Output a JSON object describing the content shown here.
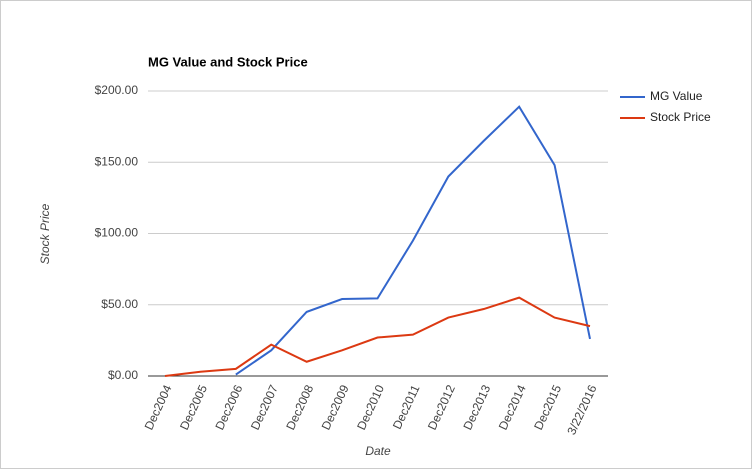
{
  "chart_data": {
    "type": "line",
    "title": "MG Value and Stock Price",
    "x_label": "Date",
    "y_label": "Stock Price",
    "categories": [
      "Dec2004",
      "Dec2005",
      "Dec2006",
      "Dec2007",
      "Dec2008",
      "Dec2009",
      "Dec2010",
      "Dec2011",
      "Dec2012",
      "Dec2013",
      "Dec2014",
      "Dec2015",
      "3/22/2016"
    ],
    "series": [
      {
        "name": "MG Value",
        "color": "#3366cc",
        "values": [
          null,
          null,
          1,
          18,
          45,
          54,
          54.5,
          95,
          140,
          165,
          189,
          148,
          26
        ]
      },
      {
        "name": "Stock Price",
        "color": "#dc3912",
        "values": [
          0,
          3,
          5,
          22,
          10,
          18,
          27,
          29,
          41,
          47,
          55,
          41,
          35
        ]
      }
    ],
    "ylim": [
      0,
      200
    ],
    "yticks": [
      {
        "value": 0,
        "label": "$0.00"
      },
      {
        "value": 50,
        "label": "$50.00"
      },
      {
        "value": 100,
        "label": "$100.00"
      },
      {
        "value": 150,
        "label": "$150.00"
      },
      {
        "value": 200,
        "label": "$200.00"
      }
    ],
    "grid": true,
    "legend": "right"
  }
}
